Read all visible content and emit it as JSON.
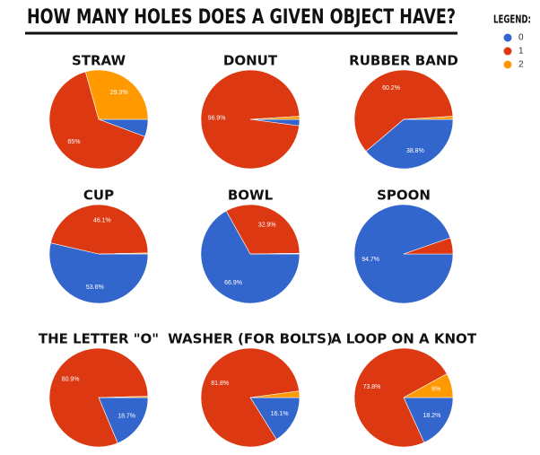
{
  "title": "HOW MANY HOLES DOES A GIVEN OBJECT HAVE?",
  "legend": {
    "title": "LEGEND:",
    "labels": [
      "0",
      "1",
      "2"
    ],
    "colors": [
      "#3366cc",
      "#dc3912",
      "#ff9900"
    ]
  },
  "chart_data": [
    {
      "type": "pie",
      "title": "STRAW",
      "values": [
        5.7,
        65,
        29.3
      ],
      "value_labels": [
        null,
        "65%",
        "29.3%"
      ]
    },
    {
      "type": "pie",
      "title": "DONUT",
      "values": [
        2.1,
        96.9,
        1.0
      ],
      "value_labels": [
        null,
        "96.9%",
        null
      ]
    },
    {
      "type": "pie",
      "title": "RUBBER BAND",
      "values": [
        38.8,
        60.2,
        1.0
      ],
      "value_labels": [
        "38.8%",
        "60.2%",
        null
      ]
    },
    {
      "type": "pie",
      "title": "CUP",
      "values": [
        53.6,
        46.1,
        0.3
      ],
      "value_labels": [
        "53.6%",
        "46.1%",
        null
      ]
    },
    {
      "type": "pie",
      "title": "BOWL",
      "values": [
        66.9,
        32.9,
        0.2
      ],
      "value_labels": [
        "66.9%",
        "32.9%",
        null
      ]
    },
    {
      "type": "pie",
      "title": "SPOON",
      "values": [
        94.7,
        5.3,
        0
      ],
      "value_labels": [
        "94.7%",
        null,
        null
      ]
    },
    {
      "type": "pie",
      "title": "THE LETTER \"O\"",
      "values": [
        18.7,
        80.9,
        0.4
      ],
      "value_labels": [
        "18.7%",
        "80.9%",
        null
      ]
    },
    {
      "type": "pie",
      "title": "WASHER (FOR BOLTS)",
      "values": [
        16.1,
        81.8,
        2.1
      ],
      "value_labels": [
        "16.1%",
        "81.8%",
        null
      ]
    },
    {
      "type": "pie",
      "title": "A LOOP ON A KNOT",
      "values": [
        18.2,
        73.8,
        8
      ],
      "value_labels": [
        "18.2%",
        "73.8%",
        "8%"
      ]
    }
  ]
}
